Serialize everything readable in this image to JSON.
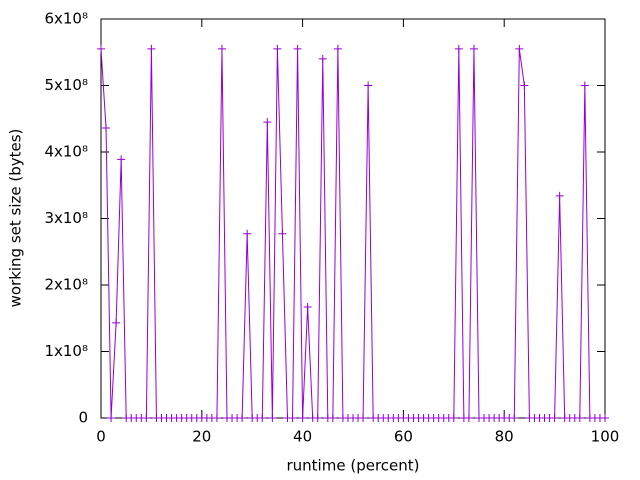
{
  "chart_data": {
    "type": "line",
    "xlabel": "runtime (percent)",
    "ylabel": "working set size (bytes)",
    "x": [
      0,
      1,
      2,
      3,
      4,
      5,
      6,
      7,
      8,
      9,
      10,
      11,
      12,
      13,
      14,
      15,
      16,
      17,
      18,
      19,
      20,
      21,
      22,
      23,
      24,
      25,
      26,
      27,
      28,
      29,
      30,
      31,
      32,
      33,
      34,
      35,
      36,
      37,
      38,
      39,
      40,
      41,
      42,
      43,
      44,
      45,
      46,
      47,
      48,
      49,
      50,
      51,
      52,
      53,
      54,
      55,
      56,
      57,
      58,
      59,
      60,
      61,
      62,
      63,
      64,
      65,
      66,
      67,
      68,
      69,
      70,
      71,
      72,
      73,
      74,
      75,
      76,
      77,
      78,
      79,
      80,
      81,
      82,
      83,
      84,
      85,
      86,
      87,
      88,
      89,
      90,
      91,
      92,
      93,
      94,
      95,
      96,
      97,
      98,
      99,
      100
    ],
    "series": [
      {
        "color": "#9400d3",
        "values": [
          555000000,
          436000000,
          0,
          143000000,
          389000000,
          0,
          0,
          0,
          0,
          0,
          555000000,
          0,
          0,
          0,
          0,
          0,
          0,
          0,
          0,
          0,
          0,
          0,
          0,
          0,
          555000000,
          0,
          0,
          0,
          0,
          277000000,
          0,
          0,
          0,
          445000000,
          0,
          555000000,
          277000000,
          0,
          0,
          555000000,
          0,
          167000000,
          0,
          0,
          540000000,
          0,
          0,
          555000000,
          0,
          0,
          0,
          0,
          0,
          500000000,
          0,
          0,
          0,
          0,
          0,
          0,
          0,
          0,
          0,
          0,
          0,
          0,
          0,
          0,
          0,
          0,
          0,
          555000000,
          0,
          0,
          555000000,
          0,
          0,
          0,
          0,
          0,
          0,
          0,
          0,
          555000000,
          500000000,
          0,
          0,
          0,
          0,
          0,
          0,
          334000000,
          0,
          0,
          0,
          0,
          500000000,
          0,
          0,
          0,
          0
        ]
      }
    ],
    "xlim": [
      0,
      100
    ],
    "xticks": [
      0,
      20,
      40,
      60,
      80,
      100
    ],
    "ylim": [
      0,
      600000000
    ],
    "yticks": [
      0,
      {
        "value": 100000000,
        "label": "1x10⁸"
      },
      {
        "value": 200000000,
        "label": "2x10⁸"
      },
      {
        "value": 300000000,
        "label": "3x10⁸"
      },
      {
        "value": 400000000,
        "label": "4x10⁸"
      },
      {
        "value": 500000000,
        "label": "5x10⁸"
      },
      {
        "value": 600000000,
        "label": "6x10⁸"
      }
    ]
  }
}
